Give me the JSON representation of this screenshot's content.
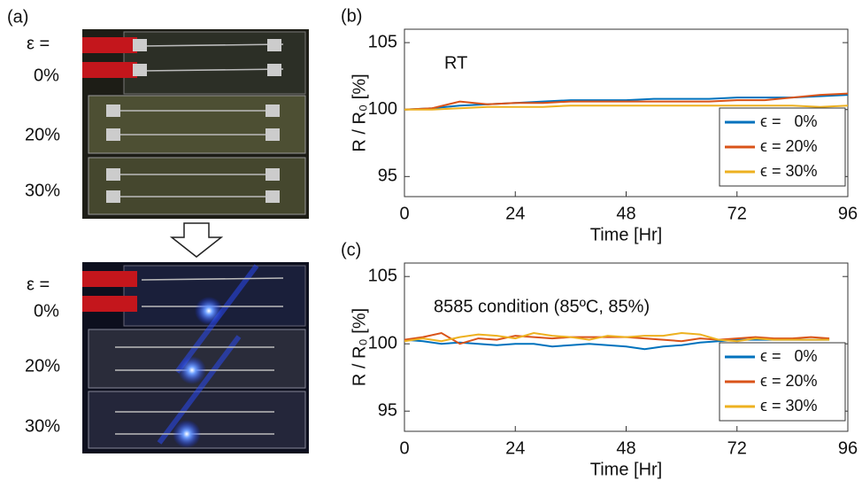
{
  "panel_a": {
    "label": "(a)",
    "photos": [
      {
        "strain_symbol": "ε =",
        "strains": [
          "0%",
          "20%",
          "30%"
        ]
      },
      {
        "strain_symbol": "ε =",
        "strains": [
          "0%",
          "20%",
          "30%"
        ]
      }
    ]
  },
  "chart_data": [
    {
      "type": "line",
      "panel_label": "(b)",
      "annotation": "RT",
      "xlabel": "Time [Hr]",
      "ylabel": "R / R₀ [%]",
      "x": [
        0,
        6,
        12,
        18,
        24,
        30,
        36,
        42,
        48,
        54,
        60,
        66,
        72,
        78,
        84,
        90,
        96
      ],
      "series": [
        {
          "name": "ϵ =   0%",
          "color": "#0072bd",
          "values": [
            100,
            100.1,
            100.3,
            100.4,
            100.5,
            100.6,
            100.7,
            100.7,
            100.7,
            100.8,
            100.8,
            100.8,
            100.9,
            100.9,
            100.9,
            101.0,
            101.1
          ]
        },
        {
          "name": "ϵ = 20%",
          "color": "#d95319",
          "values": [
            100,
            100.1,
            100.6,
            100.4,
            100.5,
            100.5,
            100.6,
            100.6,
            100.6,
            100.6,
            100.6,
            100.6,
            100.7,
            100.7,
            100.9,
            101.1,
            101.2
          ]
        },
        {
          "name": "ϵ = 30%",
          "color": "#edb120",
          "values": [
            100,
            100.0,
            100.1,
            100.2,
            100.2,
            100.2,
            100.3,
            100.3,
            100.3,
            100.3,
            100.3,
            100.3,
            100.3,
            100.3,
            100.3,
            100.2,
            100.3
          ]
        }
      ],
      "xlim": [
        0,
        96
      ],
      "xticks": [
        0,
        24,
        48,
        72,
        96
      ],
      "ylim": [
        93.5,
        106
      ],
      "yticks": [
        95,
        100,
        105
      ],
      "legend": "lower right"
    },
    {
      "type": "line",
      "panel_label": "(c)",
      "annotation": "8585 condition (85ºC, 85%)",
      "xlabel": "Time [Hr]",
      "ylabel": "R / R₀ [%]",
      "x": [
        0,
        4,
        8,
        12,
        16,
        20,
        24,
        28,
        32,
        36,
        40,
        44,
        48,
        52,
        56,
        60,
        64,
        68,
        72,
        76,
        80,
        84,
        88,
        92
      ],
      "series": [
        {
          "name": "ϵ =   0%",
          "color": "#0072bd",
          "values": [
            100.3,
            100.2,
            100.0,
            100.1,
            100.0,
            99.9,
            100.0,
            100.0,
            99.8,
            99.9,
            100.0,
            99.9,
            99.8,
            99.6,
            99.8,
            99.9,
            100.1,
            100.2,
            100.3,
            100.3,
            100.3,
            100.3,
            100.3,
            100.3
          ]
        },
        {
          "name": "ϵ = 20%",
          "color": "#d95319",
          "values": [
            100.3,
            100.5,
            100.8,
            100.0,
            100.4,
            100.3,
            100.6,
            100.5,
            100.4,
            100.5,
            100.5,
            100.5,
            100.5,
            100.4,
            100.3,
            100.2,
            100.4,
            100.3,
            100.4,
            100.5,
            100.4,
            100.4,
            100.5,
            100.4
          ]
        },
        {
          "name": "ϵ = 30%",
          "color": "#edb120",
          "values": [
            100.2,
            100.4,
            100.2,
            100.5,
            100.7,
            100.6,
            100.4,
            100.8,
            100.6,
            100.5,
            100.3,
            100.6,
            100.5,
            100.6,
            100.6,
            100.8,
            100.7,
            100.3,
            100.2,
            100.4,
            100.3,
            100.3,
            100.3,
            100.3
          ]
        }
      ],
      "xlim": [
        0,
        96
      ],
      "xticks": [
        0,
        24,
        48,
        72,
        96
      ],
      "ylim": [
        93.5,
        106
      ],
      "yticks": [
        95,
        100,
        105
      ],
      "legend": "lower right"
    }
  ]
}
